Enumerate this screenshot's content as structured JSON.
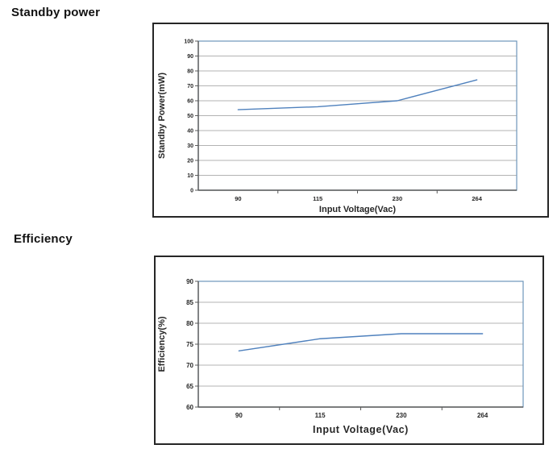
{
  "sections": [
    {
      "heading": "Standby power"
    },
    {
      "heading": "Efficiency"
    }
  ],
  "chart_data": [
    {
      "type": "line",
      "title": "Standby power",
      "categories": [
        "90",
        "115",
        "230",
        "264"
      ],
      "series": [
        {
          "name": "Standby Power",
          "values": [
            54,
            56,
            60,
            74
          ]
        }
      ],
      "xlabel": "Input Voltage(Vac)",
      "ylabel": "Standby Power(mW)",
      "ylim": [
        0,
        100
      ],
      "ytick_step": 10,
      "grid": true,
      "legend": "none",
      "line_color": "#4f81bd"
    },
    {
      "type": "line",
      "title": "Efficiency",
      "categories": [
        "90",
        "115",
        "230",
        "264"
      ],
      "series": [
        {
          "name": "Efficiency",
          "values": [
            73.4,
            76.3,
            77.5,
            77.5
          ]
        }
      ],
      "xlabel": "Input Voltage(Vac)",
      "ylabel": "Efficiency(%)",
      "ylim": [
        60,
        90
      ],
      "ytick_step": 5,
      "grid": true,
      "legend": "none",
      "line_color": "#4f81bd"
    }
  ],
  "colors": {
    "outer_border": "#262626",
    "plot_border": "#6d96ba",
    "gridline": "#b3b3b3",
    "axis": "#595959",
    "tick_text": "#262626",
    "title_text": "#111111",
    "series_line": "#4f81bd"
  }
}
